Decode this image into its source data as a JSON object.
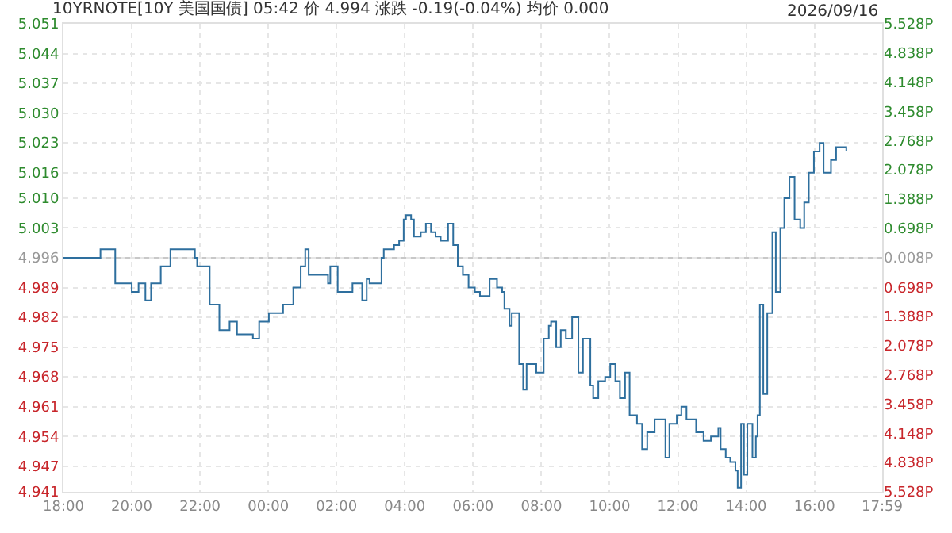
{
  "chart_data": {
    "type": "step",
    "title": "10YRNOTE[10Y 美国国债] 05:42 价 4.994 涨跌 -0.19(-0.04%) 均价 0.000",
    "annotations": [
      "2026/09/16"
    ],
    "x": [
      "2026-09-15T18:00",
      "2026-09-15T19:05",
      "2026-09-15T19:31",
      "2026-09-15T20:00",
      "2026-09-15T20:12",
      "2026-09-15T20:24",
      "2026-09-15T20:34",
      "2026-09-15T20:51",
      "2026-09-15T21:08",
      "2026-09-15T21:25",
      "2026-09-15T21:51",
      "2026-09-15T21:55",
      "2026-09-15T22:17",
      "2026-09-15T22:34",
      "2026-09-15T22:52",
      "2026-09-15T23:05",
      "2026-09-15T23:33",
      "2026-09-15T23:44",
      "2026-09-16T00:01",
      "2026-09-16T00:26",
      "2026-09-16T00:44",
      "2026-09-16T00:57",
      "2026-09-16T01:05",
      "2026-09-16T01:11",
      "2026-09-16T01:36",
      "2026-09-16T01:45",
      "2026-09-16T01:49",
      "2026-09-16T02:02",
      "2026-09-16T02:28",
      "2026-09-16T02:45",
      "2026-09-16T02:53",
      "2026-09-16T02:58",
      "2026-09-16T03:19",
      "2026-09-16T03:23",
      "2026-09-16T03:41",
      "2026-09-16T03:50",
      "2026-09-16T03:58",
      "2026-09-16T04:02",
      "2026-09-16T04:11",
      "2026-09-16T04:16",
      "2026-09-16T04:28",
      "2026-09-16T04:37",
      "2026-09-16T04:46",
      "2026-09-16T04:54",
      "2026-09-16T05:03",
      "2026-09-16T05:16",
      "2026-09-16T05:25",
      "2026-09-16T05:33",
      "2026-09-16T05:42",
      "2026-09-16T05:52",
      "2026-09-16T06:03",
      "2026-09-16T06:12",
      "2026-09-16T06:29",
      "2026-09-16T06:42",
      "2026-09-16T06:51",
      "2026-09-16T06:55",
      "2026-09-16T07:04",
      "2026-09-16T07:08",
      "2026-09-16T07:21",
      "2026-09-16T07:28",
      "2026-09-16T07:34",
      "2026-09-16T07:51",
      "2026-09-16T08:04",
      "2026-09-16T08:13",
      "2026-09-16T08:17",
      "2026-09-16T08:26",
      "2026-09-16T08:34",
      "2026-09-16T08:43",
      "2026-09-16T08:54",
      "2026-09-16T09:05",
      "2026-09-16T09:13",
      "2026-09-16T09:20",
      "2026-09-16T09:26",
      "2026-09-16T09:31",
      "2026-09-16T09:40",
      "2026-09-16T09:52",
      "2026-09-16T10:01",
      "2026-09-16T10:10",
      "2026-09-16T10:18",
      "2026-09-16T10:27",
      "2026-09-16T10:35",
      "2026-09-16T10:48",
      "2026-09-16T10:57",
      "2026-09-16T11:06",
      "2026-09-16T11:19",
      "2026-09-16T11:32",
      "2026-09-16T11:38",
      "2026-09-16T11:45",
      "2026-09-16T11:58",
      "2026-09-16T12:06",
      "2026-09-16T12:15",
      "2026-09-16T12:23",
      "2026-09-16T12:32",
      "2026-09-16T12:45",
      "2026-09-16T12:58",
      "2026-09-16T13:11",
      "2026-09-16T13:15",
      "2026-09-16T13:24",
      "2026-09-16T13:32",
      "2026-09-16T13:41",
      "2026-09-16T13:45",
      "2026-09-16T13:51",
      "2026-09-16T13:56",
      "2026-09-16T14:02",
      "2026-09-16T14:11",
      "2026-09-16T14:17",
      "2026-09-16T14:20",
      "2026-09-16T14:24",
      "2026-09-16T14:30",
      "2026-09-16T14:37",
      "2026-09-16T14:46",
      "2026-09-16T14:52",
      "2026-09-16T15:00",
      "2026-09-16T15:07",
      "2026-09-16T15:16",
      "2026-09-16T15:25",
      "2026-09-16T15:35",
      "2026-09-16T15:42",
      "2026-09-16T15:50",
      "2026-09-16T15:59",
      "2026-09-16T16:09",
      "2026-09-16T16:16",
      "2026-09-16T16:29",
      "2026-09-16T16:38",
      "2026-09-16T16:52",
      "2026-09-16T16:56"
    ],
    "series": [
      {
        "color": "#2e6f9e",
        "values": [
          4.996,
          4.998,
          4.99,
          4.988,
          4.99,
          4.986,
          4.99,
          4.994,
          4.998,
          4.998,
          4.996,
          4.994,
          4.985,
          4.979,
          4.981,
          4.978,
          4.977,
          4.981,
          4.983,
          4.985,
          4.989,
          4.994,
          4.998,
          4.992,
          4.992,
          4.99,
          4.994,
          4.988,
          4.99,
          4.986,
          4.991,
          4.99,
          4.996,
          4.998,
          4.999,
          5.0,
          5.005,
          5.006,
          5.005,
          5.001,
          5.002,
          5.004,
          5.002,
          5.001,
          5.0,
          5.004,
          4.999,
          4.994,
          4.992,
          4.989,
          4.988,
          4.987,
          4.991,
          4.989,
          4.988,
          4.984,
          4.98,
          4.983,
          4.971,
          4.965,
          4.971,
          4.969,
          4.977,
          4.98,
          4.981,
          4.975,
          4.979,
          4.977,
          4.982,
          4.969,
          4.977,
          4.977,
          4.966,
          4.963,
          4.967,
          4.968,
          4.971,
          4.967,
          4.963,
          4.969,
          4.959,
          4.957,
          4.951,
          4.955,
          4.958,
          4.958,
          4.949,
          4.957,
          4.959,
          4.961,
          4.958,
          4.958,
          4.955,
          4.953,
          4.954,
          4.956,
          4.951,
          4.949,
          4.948,
          4.946,
          4.942,
          4.957,
          4.945,
          4.957,
          4.949,
          4.954,
          4.959,
          4.985,
          4.964,
          4.983,
          5.002,
          4.988,
          5.003,
          5.01,
          5.015,
          5.005,
          5.003,
          5.009,
          5.016,
          5.021,
          5.023,
          5.016,
          5.019,
          5.022,
          5.022,
          5.021
        ]
      }
    ],
    "xlim": [
      "2026-09-15T18:00",
      "2026-09-16T17:59"
    ],
    "xticks": [
      {
        "value": "2026-09-15T18:00",
        "label": "18:00"
      },
      {
        "value": "2026-09-15T20:00",
        "label": "20:00"
      },
      {
        "value": "2026-09-15T22:00",
        "label": "22:00"
      },
      {
        "value": "2026-09-16T00:00",
        "label": "00:00"
      },
      {
        "value": "2026-09-16T02:00",
        "label": "02:00"
      },
      {
        "value": "2026-09-16T04:00",
        "label": "04:00"
      },
      {
        "value": "2026-09-16T06:00",
        "label": "06:00"
      },
      {
        "value": "2026-09-16T08:00",
        "label": "08:00"
      },
      {
        "value": "2026-09-16T10:00",
        "label": "10:00"
      },
      {
        "value": "2026-09-16T12:00",
        "label": "12:00"
      },
      {
        "value": "2026-09-16T14:00",
        "label": "14:00"
      },
      {
        "value": "2026-09-16T16:00",
        "label": "16:00"
      },
      {
        "value": "2026-09-16T17:59",
        "label": "17:59"
      }
    ],
    "ylim": [
      4.941,
      5.051
    ],
    "yticks": [
      5.051,
      5.044,
      5.037,
      {
        "value": 5.03,
        "label": "5.030"
      },
      5.023,
      5.016,
      {
        "value": 5.01,
        "label": "5.010"
      },
      5.003,
      4.996,
      4.989,
      4.982,
      4.975,
      4.968,
      4.961,
      4.954,
      4.947,
      4.941
    ],
    "y2lim": [
      -5.528,
      5.528
    ],
    "y2ticks": [
      {
        "value": 5.528,
        "label": "5.528P"
      },
      {
        "value": 4.838,
        "label": "4.838P"
      },
      {
        "value": 4.148,
        "label": "4.148P"
      },
      {
        "value": 3.458,
        "label": "3.458P"
      },
      {
        "value": 2.768,
        "label": "2.768P"
      },
      {
        "value": 2.078,
        "label": "2.078P"
      },
      {
        "value": 1.388,
        "label": "1.388P"
      },
      {
        "value": 0.698,
        "label": "0.698P"
      },
      {
        "value": 0.008,
        "label": "0.008P"
      },
      {
        "value": -0.698,
        "label": "0.698P"
      },
      {
        "value": -1.388,
        "label": "1.388P"
      },
      {
        "value": -2.078,
        "label": "2.078P"
      },
      {
        "value": -2.768,
        "label": "2.768P"
      },
      {
        "value": -3.458,
        "label": "3.458P"
      },
      {
        "value": -4.148,
        "label": "4.148P"
      },
      {
        "value": -4.838,
        "label": "4.838P"
      },
      {
        "value": -5.528,
        "label": "5.528P"
      }
    ],
    "ref_lines": [
      {
        "axis": "y",
        "value": 4.996,
        "color": "#c8c8c8"
      }
    ],
    "grid": true,
    "line_style": "solid",
    "marker": "none"
  }
}
